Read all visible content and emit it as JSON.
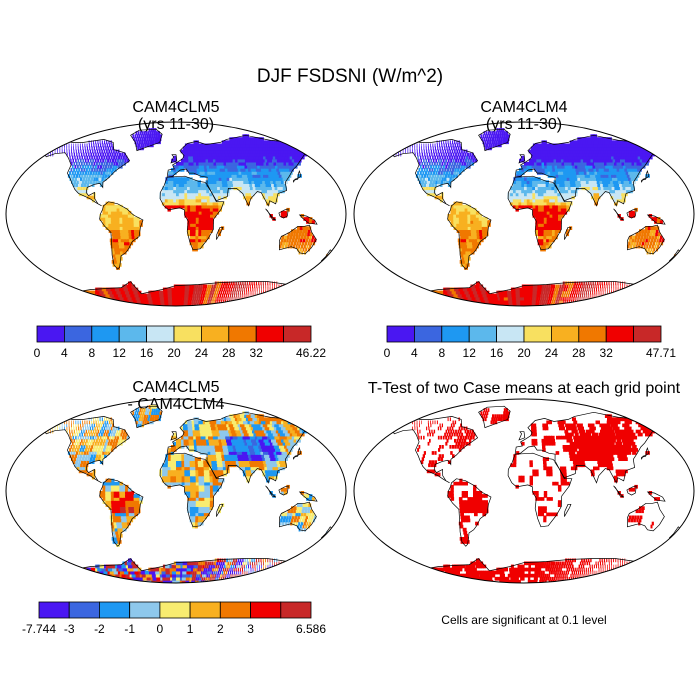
{
  "figure_title": "DJF FSDSNI (W/m^2)",
  "panels": [
    {
      "id": "p1",
      "title_line1": "CAM4CLM5",
      "title_line2": "(yrs 11-30)"
    },
    {
      "id": "p2",
      "title_line1": "CAM4CLM4",
      "title_line2": "(yrs 11-30)"
    },
    {
      "id": "p3",
      "title_line1": "CAM4CLM5",
      "title_line2": "- CAM4CLM4"
    },
    {
      "id": "p4",
      "title_line1": "T-Test of two Case means at each grid point",
      "title_line2": ""
    }
  ],
  "ttest_note": "Cells are significant at 0.1 level",
  "chart_data": [
    {
      "type": "heatmap",
      "projection": "robinson",
      "title": "CAM4CLM5 (yrs 11-30)",
      "colorbar": {
        "labels": [
          "0",
          "4",
          "8",
          "12",
          "16",
          "20",
          "24",
          "28",
          "32",
          "46.22"
        ],
        "colors": [
          "#4a17f2",
          "#3b66e0",
          "#1e98f2",
          "#5cb8ec",
          "#c8e6f4",
          "#f8e060",
          "#f8b020",
          "#f07800",
          "#f00000",
          "#c82828"
        ],
        "min": 0,
        "max": 46.22
      }
    },
    {
      "type": "heatmap",
      "projection": "robinson",
      "title": "CAM4CLM4 (yrs 11-30)",
      "colorbar": {
        "labels": [
          "0",
          "4",
          "8",
          "12",
          "16",
          "20",
          "24",
          "28",
          "32",
          "47.71"
        ],
        "colors": [
          "#4a17f2",
          "#3b66e0",
          "#1e98f2",
          "#5cb8ec",
          "#c8e6f4",
          "#f8e060",
          "#f8b020",
          "#f07800",
          "#f00000",
          "#c82828"
        ],
        "min": 0,
        "max": 47.71
      }
    },
    {
      "type": "heatmap",
      "projection": "robinson",
      "title": "CAM4CLM5 - CAM4CLM4",
      "colorbar": {
        "labels": [
          "-7.744",
          "-3",
          "-2",
          "-1",
          "0",
          "1",
          "2",
          "3",
          "6.586"
        ],
        "colors": [
          "#4a17f2",
          "#3b66e0",
          "#1e98f2",
          "#8ec8ec",
          "#f8ec70",
          "#f8b020",
          "#f07800",
          "#f00000",
          "#c82828"
        ],
        "min": -7.744,
        "max": 6.586
      }
    },
    {
      "type": "heatmap",
      "projection": "robinson",
      "title": "T-Test of two Case means at each grid point",
      "significant_color": "#f00000",
      "significance_level": 0.1
    }
  ]
}
